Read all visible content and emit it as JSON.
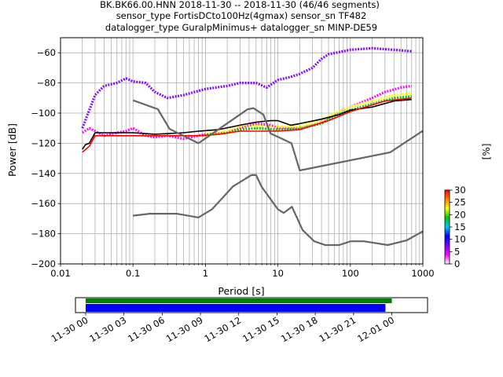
{
  "title": {
    "line1": "BK.BK66.00.HNN   2018-11-30 -- 2018-11-30  (46/46 segments)",
    "line2": "sensor_type FortisDCto100Hz(4gmax) sensor_sn TF482",
    "line3": "datalogger_type GuralpMinimus+ datalogger_sn MINP-DE59"
  },
  "chart_data": [
    {
      "type": "heatmap",
      "xlabel": "Period [s]",
      "ylabel": "Power [dB]",
      "xscale": "log",
      "xlim": [
        0.01,
        1000
      ],
      "ylim": [
        -200,
        -50
      ],
      "xticks": [
        {
          "v": 0.01,
          "label": "0.01"
        },
        {
          "v": 0.1,
          "label": "0.1"
        },
        {
          "v": 1,
          "label": "1"
        },
        {
          "v": 10,
          "label": "10"
        },
        {
          "v": 100,
          "label": "100"
        },
        {
          "v": 1000,
          "label": "1000"
        }
      ],
      "yticks": [
        {
          "v": -60,
          "label": "−60"
        },
        {
          "v": -80,
          "label": "−80"
        },
        {
          "v": -100,
          "label": "−100"
        },
        {
          "v": -120,
          "label": "−120"
        },
        {
          "v": -140,
          "label": "−140"
        },
        {
          "v": -160,
          "label": "−160"
        },
        {
          "v": -180,
          "label": "−180"
        },
        {
          "v": -200,
          "label": "−200"
        }
      ],
      "grid": true,
      "series": [
        {
          "color": "#ff00ff",
          "kind": "ppsd-band",
          "points": [
            [
              0.02,
              -113
            ],
            [
              0.025,
              -110
            ],
            [
              0.03,
              -112
            ],
            [
              0.04,
              -115
            ],
            [
              0.06,
              -113
            ],
            [
              0.08,
              -112
            ],
            [
              0.1,
              -110
            ],
            [
              0.15,
              -115
            ],
            [
              0.2,
              -116
            ],
            [
              0.3,
              -115
            ],
            [
              0.5,
              -117
            ],
            [
              1,
              -114
            ],
            [
              2,
              -113
            ],
            [
              3,
              -110
            ],
            [
              5,
              -107
            ],
            [
              8,
              -108
            ],
            [
              10,
              -110
            ],
            [
              20,
              -110
            ],
            [
              30,
              -108
            ],
            [
              50,
              -103
            ],
            [
              70,
              -99
            ],
            [
              100,
              -96
            ],
            [
              200,
              -90
            ],
            [
              300,
              -86
            ],
            [
              500,
              -83
            ],
            [
              700,
              -82
            ]
          ]
        },
        {
          "color": "#7f00ff",
          "kind": "ppsd-band",
          "points": [
            [
              0.02,
              -110
            ],
            [
              0.03,
              -88
            ],
            [
              0.04,
              -82
            ],
            [
              0.06,
              -80
            ],
            [
              0.08,
              -77
            ],
            [
              0.1,
              -79
            ],
            [
              0.15,
              -80
            ],
            [
              0.2,
              -86
            ],
            [
              0.3,
              -90
            ],
            [
              0.5,
              -88
            ],
            [
              1,
              -84
            ],
            [
              2,
              -82
            ],
            [
              3,
              -80
            ],
            [
              5,
              -80
            ],
            [
              7,
              -83
            ],
            [
              10,
              -78
            ],
            [
              15,
              -76
            ],
            [
              20,
              -74
            ],
            [
              30,
              -70
            ],
            [
              40,
              -64
            ],
            [
              50,
              -61
            ],
            [
              100,
              -58
            ],
            [
              200,
              -57
            ],
            [
              400,
              -58
            ],
            [
              700,
              -59
            ]
          ]
        },
        {
          "color": "#00c800",
          "kind": "ppsd-band",
          "points": [
            [
              0.9,
              -115
            ],
            [
              2,
              -113
            ],
            [
              3,
              -111
            ],
            [
              5,
              -110
            ],
            [
              10,
              -111
            ],
            [
              20,
              -110
            ],
            [
              40,
              -107
            ],
            [
              60,
              -102
            ],
            [
              100,
              -98
            ],
            [
              200,
              -94
            ],
            [
              400,
              -90
            ],
            [
              700,
              -89
            ]
          ]
        },
        {
          "color": "#ffff00",
          "kind": "ppsd-band",
          "points": [
            [
              1,
              -114
            ],
            [
              2,
              -112
            ],
            [
              3,
              -109
            ],
            [
              5,
              -108
            ],
            [
              10,
              -109
            ],
            [
              20,
              -109
            ],
            [
              40,
              -105
            ],
            [
              60,
              -100
            ],
            [
              100,
              -96
            ],
            [
              200,
              -92
            ],
            [
              400,
              -88
            ],
            [
              700,
              -87
            ]
          ]
        },
        {
          "color": "#000000",
          "kind": "mean",
          "points": [
            [
              0.02,
              -124
            ],
            [
              0.022,
              -121
            ],
            [
              0.025,
              -120
            ],
            [
              0.03,
              -113
            ],
            [
              0.05,
              -113
            ],
            [
              0.1,
              -113
            ],
            [
              0.2,
              -114
            ],
            [
              0.5,
              -113
            ],
            [
              0.8,
              -112
            ],
            [
              1.5,
              -111
            ],
            [
              3,
              -108
            ],
            [
              5,
              -106
            ],
            [
              8,
              -105
            ],
            [
              10,
              -105
            ],
            [
              15,
              -108
            ],
            [
              20,
              -107
            ],
            [
              40,
              -104
            ],
            [
              70,
              -101
            ],
            [
              100,
              -98
            ],
            [
              200,
              -96
            ],
            [
              400,
              -92
            ],
            [
              700,
              -91
            ]
          ]
        },
        {
          "color": "#ff0000",
          "kind": "mode",
          "points": [
            [
              0.02,
              -126
            ],
            [
              0.025,
              -122
            ],
            [
              0.03,
              -115
            ],
            [
              0.1,
              -115
            ],
            [
              0.3,
              -115
            ],
            [
              0.8,
              -115
            ],
            [
              1.5,
              -114
            ],
            [
              3,
              -112
            ],
            [
              10,
              -112
            ],
            [
              20,
              -111
            ],
            [
              50,
              -105
            ],
            [
              100,
              -99
            ],
            [
              300,
              -92
            ],
            [
              700,
              -90
            ]
          ]
        },
        {
          "color": "#666666",
          "kind": "nhnm",
          "points": [
            [
              0.1,
              -91.5
            ],
            [
              0.22,
              -97.4
            ],
            [
              0.32,
              -110.5
            ],
            [
              0.8,
              -120
            ],
            [
              3.8,
              -97.5
            ],
            [
              4.6,
              -96.7
            ],
            [
              6.3,
              -101
            ],
            [
              7.9,
              -113.5
            ],
            [
              15.4,
              -120
            ],
            [
              20,
              -138
            ],
            [
              354.8,
              -126
            ],
            [
              10000,
              -80.1
            ]
          ]
        },
        {
          "color": "#666666",
          "kind": "nlnm",
          "points": [
            [
              0.1,
              -168
            ],
            [
              0.17,
              -166.7
            ],
            [
              0.4,
              -166.7
            ],
            [
              0.8,
              -169.2
            ],
            [
              1.24,
              -163.7
            ],
            [
              2.4,
              -148.6
            ],
            [
              4.3,
              -141.1
            ],
            [
              5,
              -141.1
            ],
            [
              6,
              -149
            ],
            [
              10,
              -163.8
            ],
            [
              12,
              -166.2
            ],
            [
              15.6,
              -162.1
            ],
            [
              21.9,
              -177.5
            ],
            [
              31.6,
              -185
            ],
            [
              45,
              -187.5
            ],
            [
              70,
              -187.5
            ],
            [
              101,
              -185
            ],
            [
              154,
              -185
            ],
            [
              328,
              -187.5
            ],
            [
              600,
              -184.4
            ],
            [
              10000,
              -151.5
            ]
          ]
        }
      ],
      "colorbar": {
        "label": "[%]",
        "range": [
          0,
          30
        ],
        "ticks": [
          {
            "v": 0,
            "label": "0"
          },
          {
            "v": 5,
            "label": "5"
          },
          {
            "v": 10,
            "label": "10"
          },
          {
            "v": 15,
            "label": "15"
          },
          {
            "v": 20,
            "label": "20"
          },
          {
            "v": 25,
            "label": "25"
          },
          {
            "v": 30,
            "label": "30"
          }
        ],
        "stops": [
          "#ffffff",
          "#ff00ff",
          "#7f00ff",
          "#0000ff",
          "#00c8ff",
          "#00c800",
          "#ffff00",
          "#ff8000",
          "#ff0000"
        ]
      }
    },
    {
      "type": "bar",
      "description": "data coverage timeline",
      "xlim": [
        -0.8,
        26.8
      ],
      "xticks": [
        {
          "v": 0,
          "label": "11-30 00"
        },
        {
          "v": 3,
          "label": "11-30 03"
        },
        {
          "v": 6,
          "label": "11-30 06"
        },
        {
          "v": 9,
          "label": "11-30 09"
        },
        {
          "v": 12,
          "label": "11-30 12"
        },
        {
          "v": 15,
          "label": "11-30 15"
        },
        {
          "v": 18,
          "label": "11-30 18"
        },
        {
          "v": 21,
          "label": "11-30 21"
        },
        {
          "v": 24,
          "label": "12-01 00"
        }
      ],
      "bars": [
        {
          "color": "#008000",
          "start": 0.0,
          "end": 24.0
        },
        {
          "color": "#0000ff",
          "start": 0.0,
          "end": 23.5
        }
      ]
    }
  ]
}
